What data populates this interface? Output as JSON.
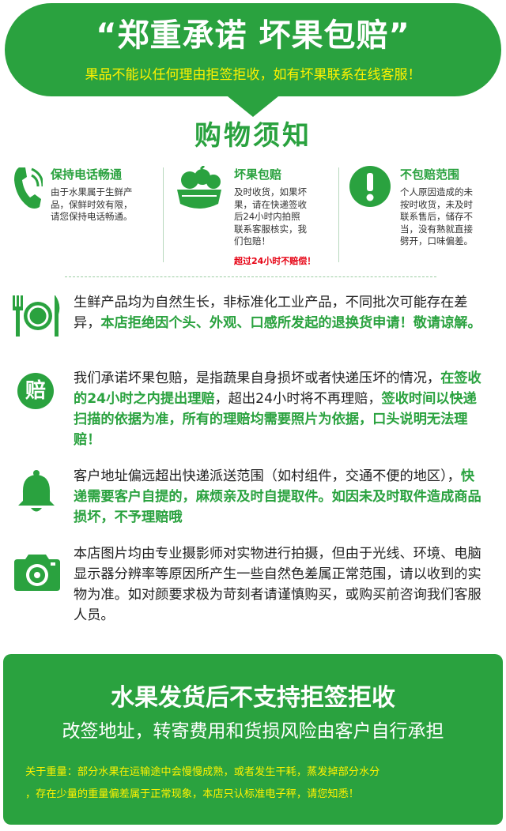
{
  "banner": {
    "title": "“郑重承诺  坏果包赔”",
    "subtitle": "果品不能以任何理由拒签拒收，如有坏果联系在线客服！"
  },
  "section_title": "购物须知",
  "columns": [
    {
      "icon": "phone-icon",
      "title": "保持电话畅通",
      "lines": [
        "由于水果属于生鲜产",
        "品，保鲜时效有限，",
        "请您保持电话畅通。"
      ]
    },
    {
      "icon": "fruit-basket-icon",
      "title": "坏果包赔",
      "lines": [
        "及时收货，如果坏",
        "果，请在快递签收",
        "后24小时内拍照",
        "联系客服核实，我",
        "们包赔！"
      ],
      "warning": "超过24小时不赔偿！"
    },
    {
      "icon": "exclamation-icon",
      "title": "不包赔范围",
      "lines": [
        "个人原因造成的未",
        "按时收货，未及时",
        "联系售后，储存不",
        "当，没有熟就直接",
        "劈开，口味偏差。"
      ]
    }
  ],
  "items": [
    {
      "icon": "plate-cutlery-icon",
      "segments": [
        {
          "text": "生鲜产品均为自然生长，非标准化工业产品，不同批次可能存在差异，",
          "hl": false
        },
        {
          "text": "本店拒绝因个头、外观、口感所发起的退换货申请！敬请谅解。",
          "hl": true
        }
      ]
    },
    {
      "icon": "compensation-icon",
      "icon_char": "赔",
      "segments": [
        {
          "text": "我们承诺坏果包赔，是指蔬果自身损坏或者快递压坏的情况，",
          "hl": false
        },
        {
          "text": "在签收的24小时之内提出理赔",
          "hl": true
        },
        {
          "text": "，超出24小时将不再理赔，",
          "hl": false
        },
        {
          "text": "签收时间以快递扫描的依据为准，所有的理赔均需要照片为依据，口头说明无法理赔！",
          "hl": true
        }
      ]
    },
    {
      "icon": "bell-icon",
      "segments": [
        {
          "text": "客户地址偏远超出快递派送范围（如村组件，交通不便的地区），",
          "hl": false
        },
        {
          "text": "快递需要客户自提的，麻烦亲及时自提取件。如因未及时取件造成商品损坏，不予理赔哦",
          "hl": true
        }
      ]
    },
    {
      "icon": "camera-icon",
      "segments": [
        {
          "text": "本店图片均由专业摄影师对实物进行拍摄，但由于光线、环境、电脑显示器分辨率等原因所产生一些自然色差属正常范围，请以收到的实物为准。如对颜要求极为苛刻者请谨慎购买，或购买前咨询我们客服人员。",
          "hl": false
        }
      ]
    }
  ],
  "bottom": {
    "title": "水果发货后不支持拒签拒收",
    "subtitle": "改签地址，转寄费用和货损风险由客户自行承担",
    "note_lines": [
      "关于重量：部分水果在运输途中会慢慢成熟，或者发生干耗，蒸发掉部分水分",
      "，存在少量的重量偏差属于正常现象，本店只认标准电子秤，请您知悉！"
    ]
  },
  "colors": {
    "brand_green": "#2aa23f",
    "highlight_yellow": "#fff200",
    "warning_red": "#e60012"
  }
}
